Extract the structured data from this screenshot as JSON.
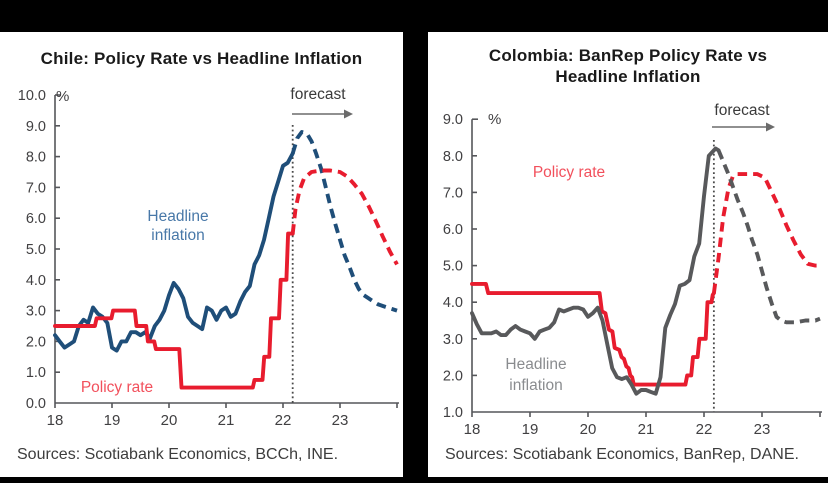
{
  "colors": {
    "red": "#e81c2e",
    "blue": "#1f4e79",
    "gray": "#58595b",
    "axis": "#55565a",
    "tick_text": "#414042",
    "dotted_line": "#4a4a4a",
    "arrow": "#6b6b6b",
    "frame_bg": "#000000",
    "panel_bg": "#ffffff"
  },
  "chart_data": [
    {
      "type": "line",
      "title": "Chile: Policy Rate vs Headline Inflation",
      "unit_label": "%",
      "forecast_label": "forecast",
      "forecast_start_x": 22.17,
      "xlim": [
        18,
        24
      ],
      "ylim": [
        0,
        10
      ],
      "xtick_labels": [
        "18",
        "19",
        "20",
        "21",
        "22",
        "23"
      ],
      "ytick_labels": [
        "10.0",
        "9.0",
        "8.0",
        "7.0",
        "6.0",
        "5.0",
        "4.0",
        "3.0",
        "2.0",
        "1.0",
        "0.0"
      ],
      "source": "Sources: Scotiabank Economics, BCCh, INE.",
      "legend_position": "inline-labels",
      "grid": false,
      "series": [
        {
          "name": "Headline inflation",
          "label_lines": [
            "Headline",
            "inflation"
          ],
          "color_key": "blue",
          "solid": [
            [
              18.0,
              2.2
            ],
            [
              18.083,
              2.0
            ],
            [
              18.167,
              1.8
            ],
            [
              18.25,
              1.9
            ],
            [
              18.333,
              2.0
            ],
            [
              18.417,
              2.5
            ],
            [
              18.5,
              2.7
            ],
            [
              18.583,
              2.6
            ],
            [
              18.667,
              3.1
            ],
            [
              18.75,
              2.9
            ],
            [
              18.833,
              2.8
            ],
            [
              18.917,
              2.6
            ],
            [
              19.0,
              1.8
            ],
            [
              19.083,
              1.7
            ],
            [
              19.167,
              2.0
            ],
            [
              19.25,
              2.0
            ],
            [
              19.333,
              2.3
            ],
            [
              19.417,
              2.3
            ],
            [
              19.5,
              2.2
            ],
            [
              19.583,
              2.3
            ],
            [
              19.667,
              2.1
            ],
            [
              19.75,
              2.5
            ],
            [
              19.833,
              2.7
            ],
            [
              19.917,
              3.0
            ],
            [
              20.0,
              3.5
            ],
            [
              20.083,
              3.9
            ],
            [
              20.167,
              3.7
            ],
            [
              20.25,
              3.4
            ],
            [
              20.333,
              2.8
            ],
            [
              20.417,
              2.6
            ],
            [
              20.5,
              2.5
            ],
            [
              20.583,
              2.4
            ],
            [
              20.667,
              3.1
            ],
            [
              20.75,
              3.0
            ],
            [
              20.833,
              2.7
            ],
            [
              20.917,
              3.0
            ],
            [
              21.0,
              3.1
            ],
            [
              21.083,
              2.8
            ],
            [
              21.167,
              2.9
            ],
            [
              21.25,
              3.3
            ],
            [
              21.333,
              3.6
            ],
            [
              21.417,
              3.8
            ],
            [
              21.5,
              4.5
            ],
            [
              21.583,
              4.8
            ],
            [
              21.667,
              5.3
            ],
            [
              21.75,
              6.0
            ],
            [
              21.833,
              6.7
            ],
            [
              21.917,
              7.2
            ],
            [
              22.0,
              7.7
            ],
            [
              22.083,
              7.8
            ],
            [
              22.17,
              8.1
            ]
          ],
          "forecast_dashed": [
            [
              22.17,
              8.1
            ],
            [
              22.25,
              8.6
            ],
            [
              22.33,
              8.8
            ],
            [
              22.42,
              8.75
            ],
            [
              22.5,
              8.5
            ],
            [
              22.58,
              8.1
            ],
            [
              22.67,
              7.6
            ],
            [
              22.75,
              7.0
            ],
            [
              22.83,
              6.4
            ],
            [
              22.92,
              5.8
            ],
            [
              23.0,
              5.3
            ],
            [
              23.08,
              4.8
            ],
            [
              23.17,
              4.4
            ],
            [
              23.25,
              4.0
            ],
            [
              23.33,
              3.7
            ],
            [
              23.42,
              3.5
            ],
            [
              23.5,
              3.4
            ],
            [
              23.58,
              3.3
            ],
            [
              23.67,
              3.2
            ],
            [
              23.75,
              3.15
            ],
            [
              23.83,
              3.1
            ],
            [
              23.92,
              3.05
            ],
            [
              24.0,
              3.0
            ]
          ]
        },
        {
          "name": "Policy rate",
          "label_lines": [
            "Policy rate"
          ],
          "color_key": "red",
          "solid": [
            [
              18.0,
              2.5
            ],
            [
              18.7,
              2.5
            ],
            [
              18.73,
              2.75
            ],
            [
              18.99,
              2.75
            ],
            [
              19.02,
              3.0
            ],
            [
              19.4,
              3.0
            ],
            [
              19.43,
              2.5
            ],
            [
              19.6,
              2.5
            ],
            [
              19.63,
              2.0
            ],
            [
              19.74,
              2.0
            ],
            [
              19.77,
              1.75
            ],
            [
              20.18,
              1.75
            ],
            [
              20.22,
              0.5
            ],
            [
              21.47,
              0.5
            ],
            [
              21.5,
              0.75
            ],
            [
              21.64,
              0.75
            ],
            [
              21.67,
              1.5
            ],
            [
              21.76,
              1.5
            ],
            [
              21.79,
              2.75
            ],
            [
              21.93,
              2.75
            ],
            [
              21.96,
              4.0
            ],
            [
              22.06,
              4.0
            ],
            [
              22.09,
              5.5
            ],
            [
              22.17,
              5.5
            ]
          ],
          "forecast_dashed": [
            [
              22.17,
              5.5
            ],
            [
              22.22,
              6.3
            ],
            [
              22.29,
              6.9
            ],
            [
              22.37,
              7.3
            ],
            [
              22.5,
              7.5
            ],
            [
              22.67,
              7.55
            ],
            [
              22.83,
              7.55
            ],
            [
              23.0,
              7.5
            ],
            [
              23.13,
              7.35
            ],
            [
              23.25,
              7.1
            ],
            [
              23.38,
              6.8
            ],
            [
              23.5,
              6.4
            ],
            [
              23.63,
              5.9
            ],
            [
              23.75,
              5.4
            ],
            [
              23.88,
              4.9
            ],
            [
              24.0,
              4.5
            ]
          ]
        }
      ]
    },
    {
      "type": "line",
      "title": "Colombia: BanRep Policy Rate vs Headline Inflation",
      "unit_label": "%",
      "forecast_label": "forecast",
      "forecast_start_x": 22.17,
      "xlim": [
        18,
        24
      ],
      "ylim": [
        1,
        9
      ],
      "xtick_labels": [
        "18",
        "19",
        "20",
        "21",
        "22",
        "23"
      ],
      "ytick_labels": [
        "9.0",
        "8.0",
        "7.0",
        "6.0",
        "5.0",
        "4.0",
        "3.0",
        "2.0",
        "1.0"
      ],
      "source": "Sources: Scotiabank Economics, BanRep, DANE.",
      "legend_position": "inline-labels",
      "grid": false,
      "series": [
        {
          "name": "Policy rate",
          "label_lines": [
            "Policy rate"
          ],
          "color_key": "red",
          "solid": [
            [
              18.0,
              4.5
            ],
            [
              18.24,
              4.5
            ],
            [
              18.28,
              4.25
            ],
            [
              20.2,
              4.25
            ],
            [
              20.24,
              3.75
            ],
            [
              20.3,
              3.7
            ],
            [
              20.36,
              3.25
            ],
            [
              20.42,
              3.2
            ],
            [
              20.46,
              2.75
            ],
            [
              20.54,
              2.7
            ],
            [
              20.58,
              2.5
            ],
            [
              20.62,
              2.45
            ],
            [
              20.66,
              2.25
            ],
            [
              20.7,
              2.2
            ],
            [
              20.73,
              2.0
            ],
            [
              20.76,
              1.95
            ],
            [
              20.79,
              1.75
            ],
            [
              21.68,
              1.75
            ],
            [
              21.71,
              2.0
            ],
            [
              21.78,
              2.0
            ],
            [
              21.81,
              2.5
            ],
            [
              21.89,
              2.5
            ],
            [
              21.92,
              3.0
            ],
            [
              22.03,
              3.0
            ],
            [
              22.06,
              4.0
            ],
            [
              22.13,
              4.0
            ],
            [
              22.15,
              4.2
            ],
            [
              22.17,
              4.25
            ]
          ],
          "forecast_dashed": [
            [
              22.17,
              4.25
            ],
            [
              22.25,
              5.2
            ],
            [
              22.33,
              6.3
            ],
            [
              22.42,
              7.1
            ],
            [
              22.5,
              7.45
            ],
            [
              22.58,
              7.5
            ],
            [
              22.75,
              7.5
            ],
            [
              22.92,
              7.5
            ],
            [
              23.05,
              7.4
            ],
            [
              23.17,
              7.0
            ],
            [
              23.29,
              6.6
            ],
            [
              23.42,
              6.1
            ],
            [
              23.54,
              5.7
            ],
            [
              23.67,
              5.3
            ],
            [
              23.79,
              5.05
            ],
            [
              23.92,
              5.0
            ],
            [
              24.0,
              5.0
            ]
          ]
        },
        {
          "name": "Headline inflation",
          "label_lines": [
            "Headline",
            "inflation"
          ],
          "color_key": "gray",
          "solid": [
            [
              18.0,
              3.7
            ],
            [
              18.083,
              3.4
            ],
            [
              18.167,
              3.15
            ],
            [
              18.25,
              3.15
            ],
            [
              18.333,
              3.15
            ],
            [
              18.417,
              3.2
            ],
            [
              18.5,
              3.1
            ],
            [
              18.583,
              3.1
            ],
            [
              18.667,
              3.25
            ],
            [
              18.75,
              3.35
            ],
            [
              18.833,
              3.25
            ],
            [
              18.917,
              3.2
            ],
            [
              19.0,
              3.15
            ],
            [
              19.083,
              3.0
            ],
            [
              19.167,
              3.2
            ],
            [
              19.25,
              3.25
            ],
            [
              19.333,
              3.3
            ],
            [
              19.417,
              3.45
            ],
            [
              19.5,
              3.8
            ],
            [
              19.583,
              3.75
            ],
            [
              19.667,
              3.8
            ],
            [
              19.75,
              3.85
            ],
            [
              19.833,
              3.85
            ],
            [
              19.917,
              3.8
            ],
            [
              20.0,
              3.6
            ],
            [
              20.083,
              3.7
            ],
            [
              20.167,
              3.85
            ],
            [
              20.25,
              3.5
            ],
            [
              20.333,
              2.85
            ],
            [
              20.417,
              2.2
            ],
            [
              20.5,
              1.95
            ],
            [
              20.583,
              1.9
            ],
            [
              20.667,
              1.95
            ],
            [
              20.75,
              1.75
            ],
            [
              20.833,
              1.5
            ],
            [
              20.917,
              1.6
            ],
            [
              21.0,
              1.6
            ],
            [
              21.083,
              1.55
            ],
            [
              21.167,
              1.5
            ],
            [
              21.25,
              1.95
            ],
            [
              21.333,
              3.3
            ],
            [
              21.417,
              3.65
            ],
            [
              21.5,
              3.95
            ],
            [
              21.583,
              4.45
            ],
            [
              21.667,
              4.5
            ],
            [
              21.75,
              4.6
            ],
            [
              21.833,
              5.25
            ],
            [
              21.917,
              5.6
            ],
            [
              22.0,
              6.9
            ],
            [
              22.083,
              8.0
            ],
            [
              22.2,
              8.2
            ],
            [
              22.25,
              8.15
            ]
          ],
          "forecast_dashed": [
            [
              22.25,
              8.15
            ],
            [
              22.33,
              7.85
            ],
            [
              22.42,
              7.5
            ],
            [
              22.5,
              7.15
            ],
            [
              22.58,
              6.8
            ],
            [
              22.67,
              6.45
            ],
            [
              22.75,
              6.1
            ],
            [
              22.83,
              5.7
            ],
            [
              22.92,
              5.3
            ],
            [
              23.0,
              4.85
            ],
            [
              23.08,
              4.4
            ],
            [
              23.17,
              3.95
            ],
            [
              23.25,
              3.6
            ],
            [
              23.33,
              3.5
            ],
            [
              23.42,
              3.45
            ],
            [
              23.58,
              3.45
            ],
            [
              23.75,
              3.5
            ],
            [
              23.92,
              3.5
            ],
            [
              24.0,
              3.55
            ]
          ]
        }
      ]
    }
  ]
}
